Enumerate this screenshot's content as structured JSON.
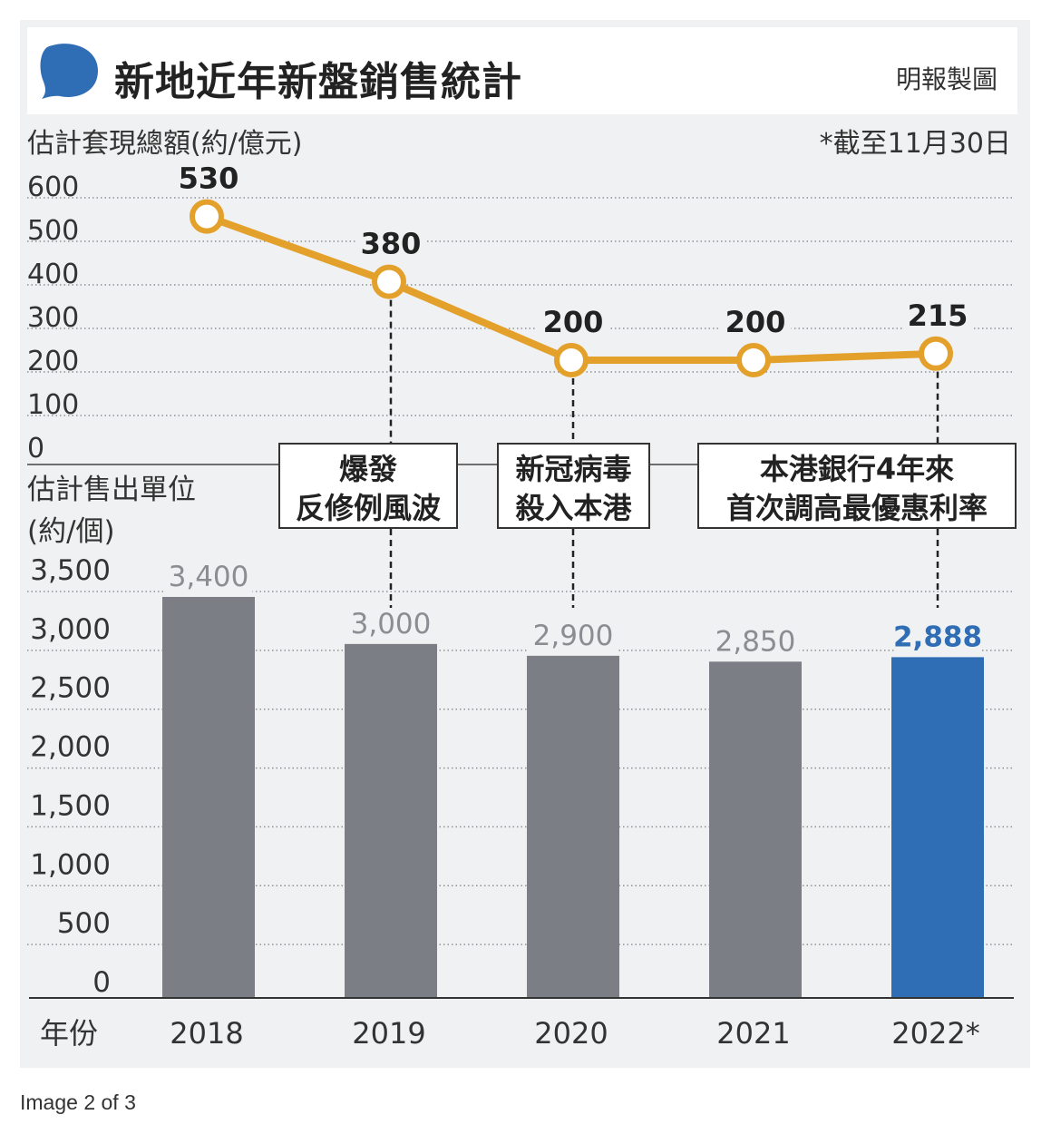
{
  "header": {
    "title": "新地近年新盤銷售統計",
    "source": "明報製圖",
    "note": "*截至11月30日"
  },
  "colors": {
    "accent_blue": "#2f6db5",
    "bar_gray": "#7b7f85",
    "line_orange": "#e3a12b",
    "panel_bg": "#f0f1f2"
  },
  "icons": {
    "title_marker": "speech-bubble-icon"
  },
  "chart_data": [
    {
      "type": "line",
      "ylabel": "估計套現總額(約/億元)",
      "x": [
        "2018",
        "2019",
        "2020",
        "2021",
        "2022*"
      ],
      "values": [
        530,
        380,
        200,
        200,
        215
      ],
      "value_labels": [
        "530",
        "380",
        "200",
        "200",
        "215"
      ],
      "ylim": [
        0,
        600
      ],
      "yticks": [
        0,
        100,
        200,
        300,
        400,
        500,
        600
      ],
      "ytick_labels": [
        "0",
        "100",
        "200",
        "300",
        "400",
        "500",
        "600"
      ],
      "grid": "dotted",
      "annotations": [
        {
          "x": "2019",
          "text_lines": [
            "爆發",
            "反修例風波"
          ]
        },
        {
          "x": "2020",
          "text_lines": [
            "新冠病毒",
            "殺入本港"
          ]
        },
        {
          "x": "2022*",
          "text_lines": [
            "本港銀行4年來",
            "首次調高最優惠利率"
          ]
        }
      ]
    },
    {
      "type": "bar",
      "ylabel_lines": [
        "估計售出單位",
        "(約/個)"
      ],
      "xlabel": "年份",
      "categories": [
        "2018",
        "2019",
        "2020",
        "2021",
        "2022*"
      ],
      "values": [
        3400,
        3000,
        2900,
        2850,
        2888
      ],
      "value_labels": [
        "3,400",
        "3,000",
        "2,900",
        "2,850",
        "2,888"
      ],
      "highlight": "2022*",
      "ylim": [
        0,
        3500
      ],
      "yticks": [
        0,
        500,
        1000,
        1500,
        2000,
        2500,
        3000,
        3500
      ],
      "ytick_labels": [
        "0",
        "500",
        "1,000",
        "1,500",
        "2,000",
        "2,500",
        "3,000",
        "3,500"
      ],
      "grid": "dotted"
    }
  ],
  "footer": {
    "caption": "Image 2 of 3"
  }
}
